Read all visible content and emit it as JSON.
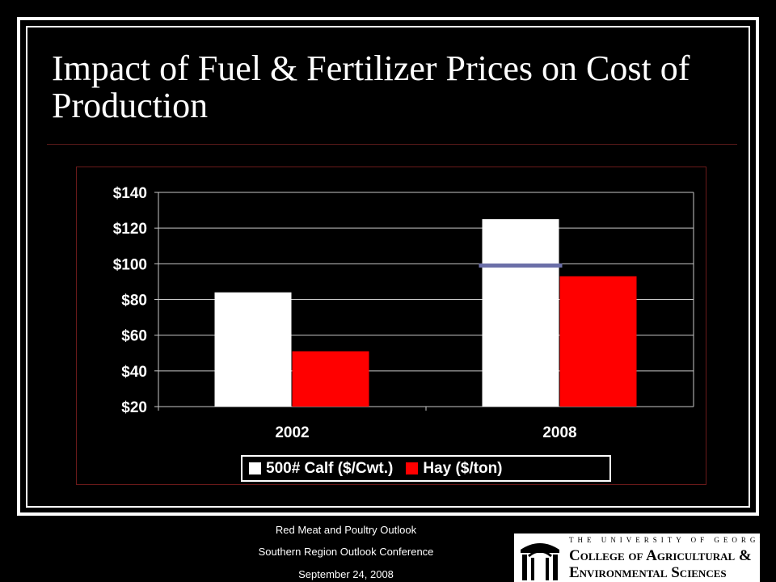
{
  "slide": {
    "title": "Impact of Fuel & Fertilizer Prices on Cost of Production"
  },
  "chart_data": {
    "type": "bar",
    "categories": [
      "2002",
      "2008"
    ],
    "series": [
      {
        "name": "500# Calf ($/Cwt.)",
        "values": [
          84,
          125
        ],
        "color": "#ffffff"
      },
      {
        "name": "Hay ($/ton)",
        "values": [
          51,
          93
        ],
        "color": "#ff0000"
      }
    ],
    "reference_line": {
      "category": "2008",
      "value": 99,
      "color": "#6b6fa8"
    },
    "ylim": [
      20,
      140
    ],
    "yticks": [
      20,
      40,
      60,
      80,
      100,
      120,
      140
    ],
    "ytick_labels": [
      "$20",
      "$40",
      "$60",
      "$80",
      "$100",
      "$120",
      "$140"
    ],
    "grid": true,
    "legend_position": "bottom"
  },
  "footer": {
    "line1": "Red Meat and Poultry Outlook",
    "line2": "Southern Region Outlook Conference",
    "line3": "September 24, 2008"
  },
  "logo": {
    "line1": "THE UNIVERSITY OF GEORGIA",
    "line2": "College of Agricultural &",
    "line3": "Environmental Sciences"
  }
}
